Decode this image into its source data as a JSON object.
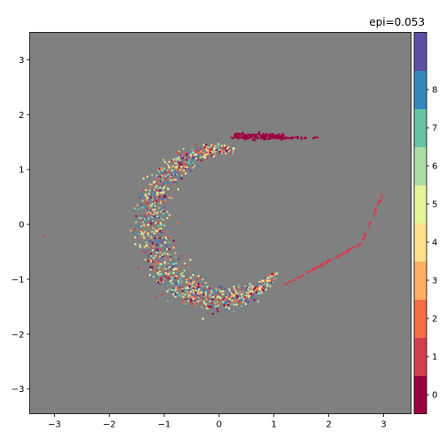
{
  "chart_data": {
    "type": "scatter",
    "title": "epi=0.053",
    "xlabel": "",
    "ylabel": "",
    "xlim": [
      -3.45,
      3.5
    ],
    "ylim": [
      -3.45,
      3.5
    ],
    "x_ticks": [
      -3,
      -2,
      -1,
      0,
      1,
      2,
      3
    ],
    "y_ticks": [
      -3,
      -2,
      -1,
      0,
      1,
      2,
      3
    ],
    "x_tick_labels": [
      "−3",
      "−2",
      "−1",
      "0",
      "1",
      "2",
      "3"
    ],
    "y_tick_labels": [
      "−3",
      "−2",
      "−1",
      "0",
      "1",
      "2",
      "3"
    ],
    "background_color": "#808080",
    "grid": false,
    "colorbar": {
      "placement": "right",
      "ticks": [
        "0",
        "1",
        "2",
        "3",
        "4",
        "5",
        "6",
        "7",
        "8"
      ],
      "colors": [
        "#9e0142",
        "#d53e4f",
        "#f46d43",
        "#fdae61",
        "#fee08b",
        "#e6f598",
        "#abdda4",
        "#66c2a5",
        "#3288bd",
        "#5e4fa2"
      ]
    },
    "clusters": [
      {
        "class": 0,
        "description": "dense streak",
        "x_range": [
          0.3,
          1.2
        ],
        "y_center": 1.6,
        "count": 160
      },
      {
        "class": 1,
        "description": "thin line",
        "x_range": [
          0.9,
          3.0
        ],
        "y_range": [
          -1.2,
          0.6
        ],
        "count": 110
      },
      {
        "class": "mixed",
        "description": "crescent arc",
        "center": [
          0.05,
          0.0
        ],
        "radius": 1.3,
        "count": 1400
      }
    ]
  }
}
